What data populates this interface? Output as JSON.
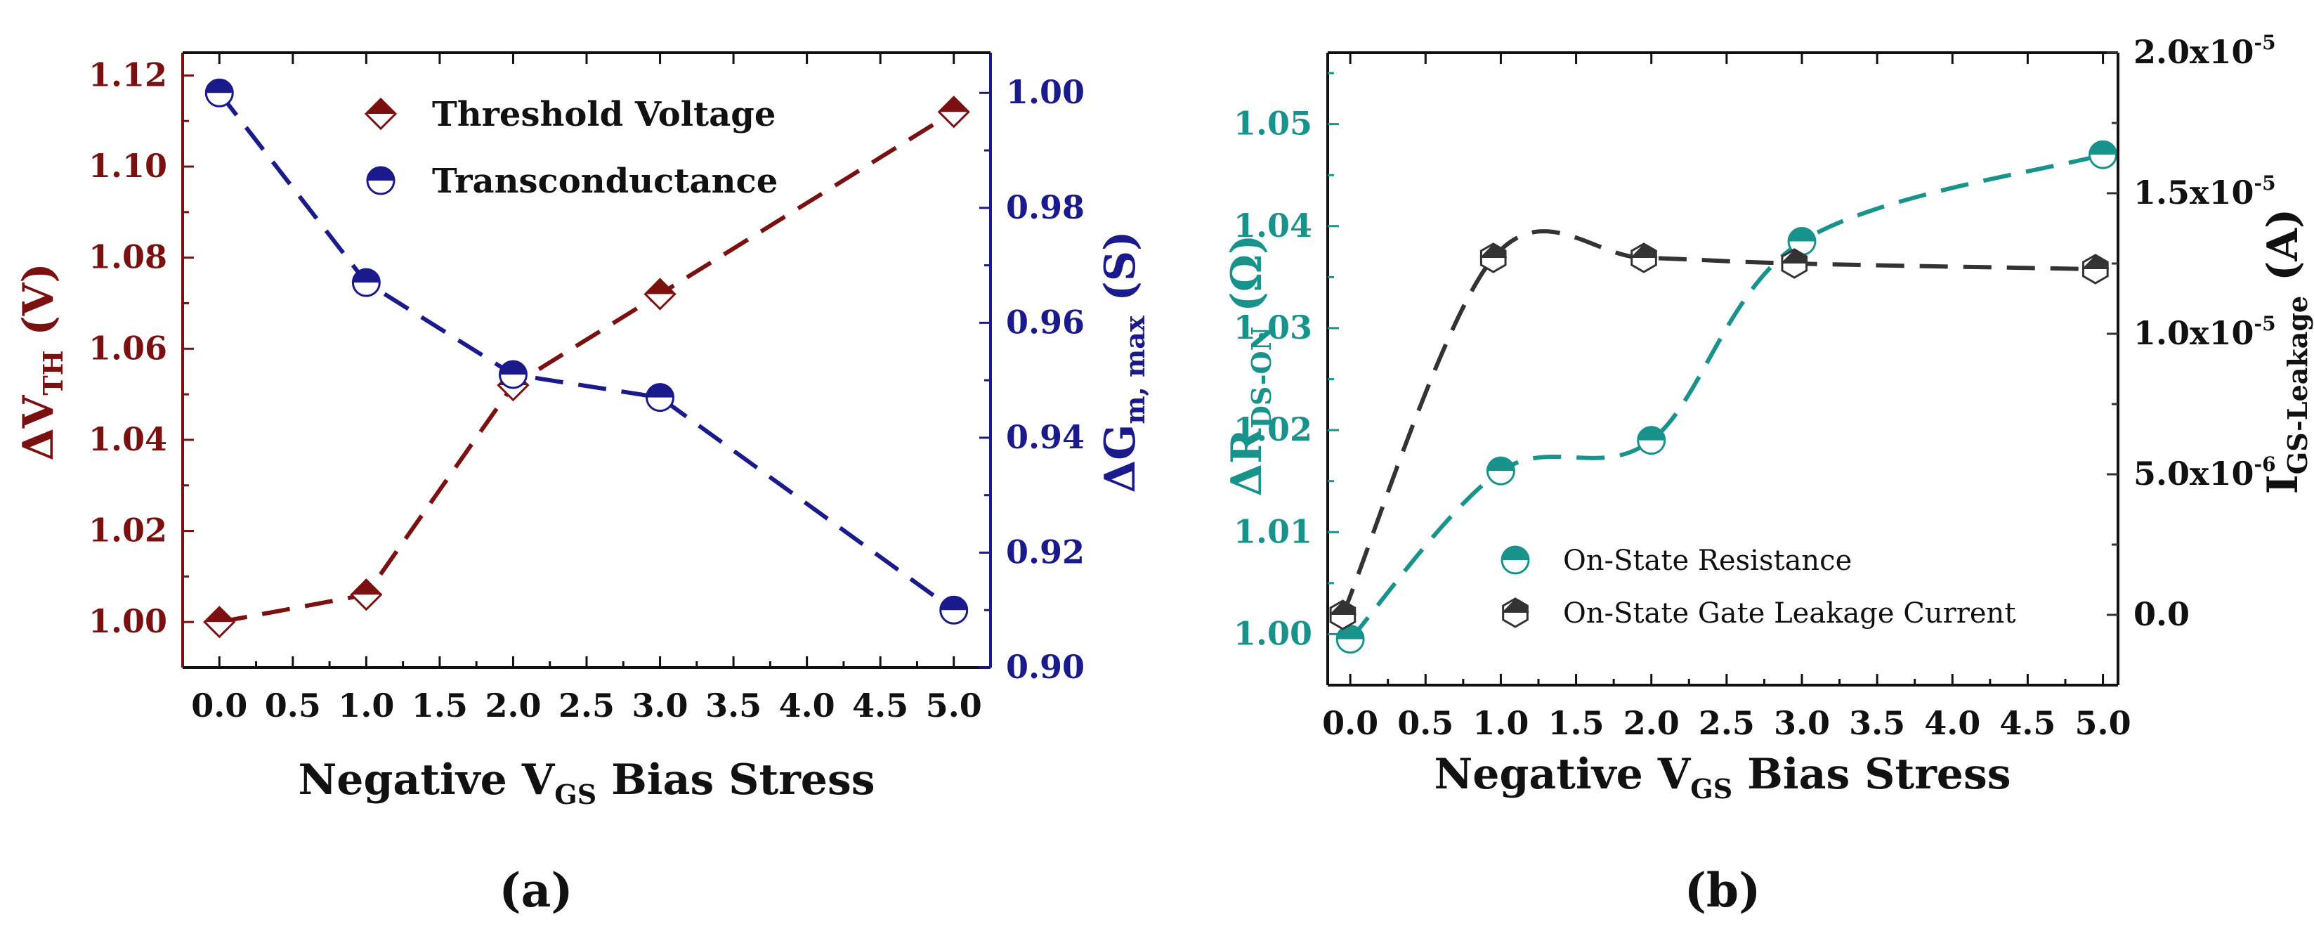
{
  "chart_data": [
    {
      "panel": "(a)",
      "type": "line",
      "xlabel": "Negative V",
      "xlabel_sub": "GS",
      "xlabel_tail": " Bias Stress",
      "xlim": [
        -0.25,
        5.25
      ],
      "xticks": [
        "0.0",
        "0.5",
        "1.0",
        "1.5",
        "2.0",
        "2.5",
        "3.0",
        "3.5",
        "4.0",
        "4.5",
        "5.0"
      ],
      "y_left": {
        "label": "ΔV",
        "label_sub": "TH",
        "label_tail": " (V)",
        "lim": [
          0.99,
          1.125
        ],
        "ticks": [
          "1.00",
          "1.02",
          "1.04",
          "1.06",
          "1.08",
          "1.10",
          "1.12"
        ],
        "color": "#7b1010"
      },
      "y_right": {
        "label": "ΔG",
        "label_sub": "m, max",
        "label_tail": " (S)",
        "lim": [
          0.9,
          1.007
        ],
        "ticks": [
          "0.90",
          "0.92",
          "0.94",
          "0.96",
          "0.98",
          "1.00"
        ],
        "color": "#1a1a8c"
      },
      "series": [
        {
          "name": "Threshold Voltage",
          "axis": "left",
          "marker": "diamond",
          "color": "#7b1010",
          "x": [
            0,
            1,
            2,
            3,
            5
          ],
          "values": [
            1.0,
            1.006,
            1.052,
            1.072,
            1.112
          ]
        },
        {
          "name": "Transconductance",
          "axis": "right",
          "marker": "circle",
          "color": "#1a1a8c",
          "x": [
            0,
            1,
            2,
            3,
            5
          ],
          "values": [
            1.0,
            0.967,
            0.951,
            0.947,
            0.91
          ]
        }
      ],
      "legend": "top-left"
    },
    {
      "panel": "(b)",
      "type": "line",
      "xlabel": "Negative V",
      "xlabel_sub": "GS",
      "xlabel_tail": " Bias Stress",
      "xlim": [
        -0.15,
        5.1
      ],
      "xticks": [
        "0.0",
        "0.5",
        "1.0",
        "1.5",
        "2.0",
        "2.5",
        "3.0",
        "3.5",
        "4.0",
        "4.5",
        "5.0"
      ],
      "y_left": {
        "label": "ΔR",
        "label_sub": "DS-ON",
        "label_tail": " (Ω)",
        "lim": [
          0.995,
          1.057
        ],
        "ticks": [
          "1.00",
          "1.01",
          "1.02",
          "1.03",
          "1.04",
          "1.05"
        ],
        "color": "#17938c"
      },
      "y_right": {
        "label": "I",
        "label_sub": "GS-Leakage",
        "label_tail": " (A)",
        "lim": [
          -2.5e-06,
          2e-05
        ],
        "ticks": [
          {
            "value": 0,
            "base": "0.0",
            "exp": ""
          },
          {
            "value": 5e-06,
            "base": "5.0x10",
            "exp": "-6"
          },
          {
            "value": 1e-05,
            "base": "1.0x10",
            "exp": "-5"
          },
          {
            "value": 1.5e-05,
            "base": "1.5x10",
            "exp": "-5"
          },
          {
            "value": 2e-05,
            "base": "2.0x10",
            "exp": "-5"
          }
        ],
        "color": "#333333"
      },
      "series": [
        {
          "name": "On-State Resistance",
          "axis": "left",
          "marker": "circle",
          "color": "#17938c",
          "x": [
            0,
            1,
            2,
            3,
            5
          ],
          "values": [
            0.9995,
            1.016,
            1.019,
            1.0385,
            1.047
          ]
        },
        {
          "name": "On-State Gate Leakage Current",
          "axis": "right",
          "marker": "hexagon",
          "color": "#333333",
          "x": [
            -0.05,
            0.95,
            1.95,
            2.95,
            4.95
          ],
          "values": [
            0.0,
            1.27e-05,
            1.27e-05,
            1.25e-05,
            1.23e-05
          ]
        }
      ],
      "legend": "bottom-center"
    }
  ]
}
